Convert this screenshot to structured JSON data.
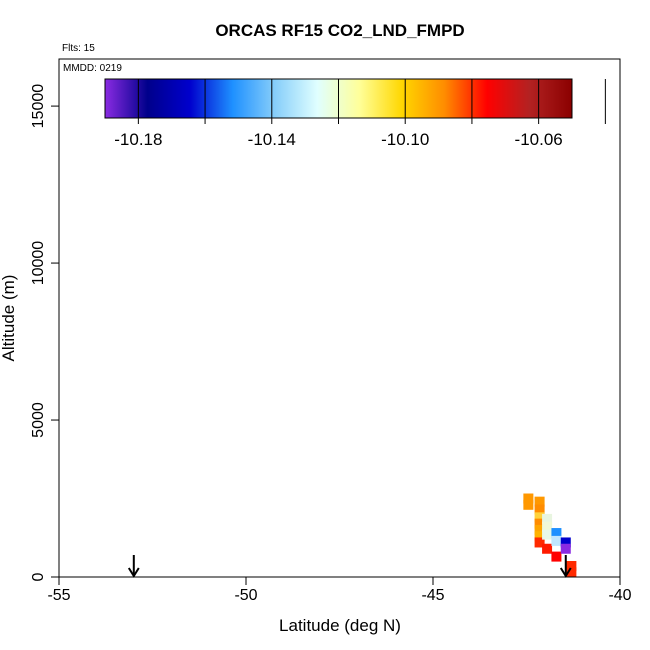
{
  "chart_data": {
    "type": "scatter",
    "title": "ORCAS RF15 CO2_LND_FMPD",
    "subtitle": "Flts: 15",
    "inset_label": "MMDD: 0219",
    "xlabel": "Latitude (deg N)",
    "ylabel": "Altitude (m)",
    "xlim": [
      -55,
      -40
    ],
    "ylim": [
      0,
      16500
    ],
    "xticks": [
      -55,
      -50,
      -45,
      -40
    ],
    "yticks": [
      0,
      5000,
      10000,
      15000
    ],
    "colorbar": {
      "range": [
        -10.19,
        -10.05
      ],
      "ticks": [
        -10.18,
        -10.14,
        -10.1,
        -10.06
      ],
      "tick_labels": [
        "-10.18",
        "-10.14",
        "-10.10",
        "-10.06"
      ],
      "colors": [
        "#8a2be2",
        "#00008b",
        "#0000cd",
        "#1e90ff",
        "#87cefa",
        "#e0ffff",
        "#ffff99",
        "#ffd700",
        "#ff8c00",
        "#ff0000",
        "#b22222",
        "#8b0000"
      ]
    },
    "points": [
      {
        "x": -42.45,
        "y": 2500,
        "color": "#ff9800"
      },
      {
        "x": -42.45,
        "y": 2300,
        "color": "#ff9800"
      },
      {
        "x": -42.15,
        "y": 2400,
        "color": "#ff9800"
      },
      {
        "x": -42.15,
        "y": 2150,
        "color": "#ff8c00"
      },
      {
        "x": -42.15,
        "y": 1900,
        "color": "#ffd23c"
      },
      {
        "x": -42.15,
        "y": 1700,
        "color": "#ff8c00"
      },
      {
        "x": -42.15,
        "y": 1500,
        "color": "#ffa500"
      },
      {
        "x": -42.15,
        "y": 1300,
        "color": "#ffb300"
      },
      {
        "x": -42.15,
        "y": 1100,
        "color": "#ff2a00"
      },
      {
        "x": -41.95,
        "y": 1850,
        "color": "#e8f5e0"
      },
      {
        "x": -41.95,
        "y": 1600,
        "color": "#f0f8d8"
      },
      {
        "x": -41.95,
        "y": 1350,
        "color": "#e8f8e8"
      },
      {
        "x": -41.95,
        "y": 900,
        "color": "#ff1a00"
      },
      {
        "x": -41.7,
        "y": 1400,
        "color": "#1e90ff"
      },
      {
        "x": -41.7,
        "y": 1150,
        "color": "#bfe6ff"
      },
      {
        "x": -41.7,
        "y": 650,
        "color": "#ff0000"
      },
      {
        "x": -41.45,
        "y": 1100,
        "color": "#0000cd"
      },
      {
        "x": -41.45,
        "y": 900,
        "color": "#8a2be2"
      },
      {
        "x": -41.3,
        "y": 350,
        "color": "#ff2a00"
      },
      {
        "x": -41.3,
        "y": 150,
        "color": "#ff2a00"
      }
    ],
    "arrows": [
      {
        "x": -53.0,
        "y": 0
      },
      {
        "x": -41.45,
        "y": 0
      }
    ]
  }
}
